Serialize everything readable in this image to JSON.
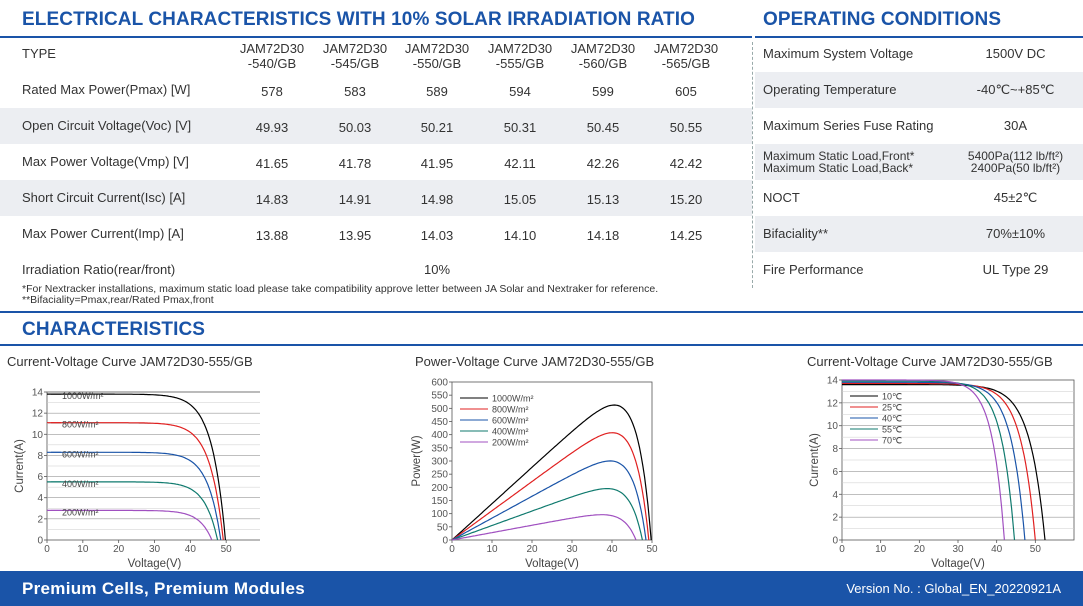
{
  "electrical": {
    "title": "ELECTRICAL CHARACTERISTICS WITH 10% SOLAR IRRADIATION RATIO",
    "type_label": "TYPE",
    "models": [
      {
        "l1": "JAM72D30",
        "l2": "-540/GB"
      },
      {
        "l1": "JAM72D30",
        "l2": "-545/GB"
      },
      {
        "l1": "JAM72D30",
        "l2": "-550/GB"
      },
      {
        "l1": "JAM72D30",
        "l2": "-555/GB"
      },
      {
        "l1": "JAM72D30",
        "l2": "-560/GB"
      },
      {
        "l1": "JAM72D30",
        "l2": "-565/GB"
      }
    ],
    "rows": [
      {
        "label": "Rated Max Power(Pmax) [W]",
        "values": [
          "578",
          "583",
          "589",
          "594",
          "599",
          "605"
        ]
      },
      {
        "label": "Open Circuit Voltage(Voc) [V]",
        "values": [
          "49.93",
          "50.03",
          "50.21",
          "50.31",
          "50.45",
          "50.55"
        ]
      },
      {
        "label": "Max Power Voltage(Vmp) [V]",
        "values": [
          "41.65",
          "41.78",
          "41.95",
          "42.11",
          "42.26",
          "42.42"
        ]
      },
      {
        "label": "Short Circuit Current(Isc) [A]",
        "values": [
          "14.83",
          "14.91",
          "14.98",
          "15.05",
          "15.13",
          "15.20"
        ]
      },
      {
        "label": "Max Power Current(Imp) [A]",
        "values": [
          "13.88",
          "13.95",
          "14.03",
          "14.10",
          "14.18",
          "14.25"
        ]
      }
    ],
    "irradiation_label": "Irradiation Ratio(rear/front)",
    "irradiation_value": "10%",
    "note1": "*For Nextracker installations, maximum static load please take compatibility approve letter between JA Solar and Nextraker for reference.",
    "note2": "**Bifaciality=Pmax,rear/Rated Pmax,front"
  },
  "operating": {
    "title": "OPERATING CONDITIONS",
    "rows": [
      {
        "label": "Maximum System Voltage",
        "value": "1500V DC"
      },
      {
        "label": "Operating Temperature",
        "value": "-40℃~+85℃"
      },
      {
        "label": "Maximum Series Fuse Rating",
        "value": "30A"
      },
      {
        "label": "Maximum Static Load,Front*",
        "label2": "Maximum Static Load,Back*",
        "value": "5400Pa(112 lb/ft²)",
        "value2": "2400Pa(50 lb/ft²)"
      },
      {
        "label": "NOCT",
        "value": "45±2℃"
      },
      {
        "label": "Bifaciality**",
        "value": "70%±10%"
      },
      {
        "label": "Fire Performance",
        "value": "UL Type 29"
      }
    ]
  },
  "characteristics": {
    "title": "CHARACTERISTICS"
  },
  "footer": {
    "left": "Premium Cells, Premium Modules",
    "right": "Version No. : Global_EN_20220921A"
  },
  "colors": {
    "brand": "#1a54a8",
    "series": [
      "#000000",
      "#e02020",
      "#1a54a8",
      "#0f7a6e",
      "#a050c0"
    ]
  },
  "chart_data": [
    {
      "type": "line",
      "title": "Current-Voltage Curve   JAM72D30-555/GB",
      "xlabel": "Voltage(V)",
      "ylabel": "Current(A)",
      "xlim": [
        0,
        60
      ],
      "ylim": [
        0,
        14
      ],
      "xticks": [
        0,
        10,
        20,
        30,
        40,
        50
      ],
      "yticks": [
        0,
        2,
        4,
        6,
        8,
        10,
        12,
        14
      ],
      "legend": "inline",
      "grid": true,
      "series": [
        {
          "name": "1000W/m²",
          "isc": 13.8,
          "voc": 49.8
        },
        {
          "name": "800W/m²",
          "isc": 11.1,
          "voc": 49.2
        },
        {
          "name": "600W/m²",
          "isc": 8.3,
          "voc": 48.5
        },
        {
          "name": "400W/m²",
          "isc": 5.5,
          "voc": 47.6
        },
        {
          "name": "200W/m²",
          "isc": 2.8,
          "voc": 46.0
        }
      ]
    },
    {
      "type": "line",
      "title": "Power-Voltage Curve   JAM72D30-555/GB",
      "xlabel": "Voltage(V)",
      "ylabel": "Power(W)",
      "xlim": [
        0,
        50
      ],
      "ylim": [
        0,
        600
      ],
      "xticks": [
        0,
        10,
        20,
        30,
        40,
        50
      ],
      "yticks": [
        0,
        50,
        100,
        150,
        200,
        250,
        300,
        350,
        400,
        450,
        500,
        550,
        600
      ],
      "legend": "top-left",
      "grid": false,
      "series": [
        {
          "name": "1000W/m²",
          "isc": 13.8,
          "voc": 49.8
        },
        {
          "name": "800W/m²",
          "isc": 11.1,
          "voc": 49.2
        },
        {
          "name": "600W/m²",
          "isc": 8.3,
          "voc": 48.5
        },
        {
          "name": "400W/m²",
          "isc": 5.5,
          "voc": 47.6
        },
        {
          "name": "200W/m²",
          "isc": 2.8,
          "voc": 46.0
        }
      ]
    },
    {
      "type": "line",
      "title": "Current-Voltage Curve   JAM72D30-555/GB",
      "xlabel": "Voltage(V)",
      "ylabel": "Current(A)",
      "xlim": [
        0,
        60
      ],
      "ylim": [
        0,
        14
      ],
      "xticks": [
        0,
        10,
        20,
        30,
        40,
        50
      ],
      "yticks": [
        0,
        2,
        4,
        6,
        8,
        10,
        12,
        14
      ],
      "legend": "top-left",
      "grid": true,
      "series": [
        {
          "name": "10℃",
          "isc": 13.6,
          "voc": 52.5
        },
        {
          "name": "25℃",
          "isc": 13.7,
          "voc": 50.0
        },
        {
          "name": "40℃",
          "isc": 13.8,
          "voc": 47.3
        },
        {
          "name": "55℃",
          "isc": 13.9,
          "voc": 44.6
        },
        {
          "name": "70℃",
          "isc": 14.0,
          "voc": 42.0
        }
      ]
    }
  ]
}
